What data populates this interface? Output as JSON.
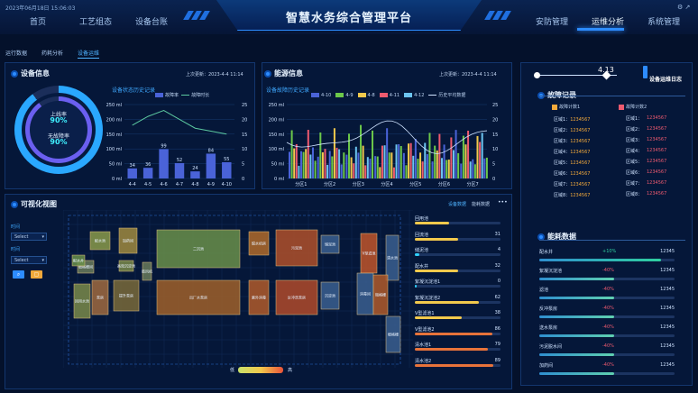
{
  "header": {
    "datetime": "2023年06月18日 15:06:03",
    "title": "智慧水务综合管理平台",
    "nav_left": [
      "首页",
      "工艺组态",
      "设备台账"
    ],
    "nav_right": [
      "安防管理",
      "运维分析",
      "系统管理"
    ],
    "active_nav": "运维分析"
  },
  "subtabs": [
    "运行数据",
    "药耗分析",
    "设备运维"
  ],
  "active_subtab": "设备运维",
  "device_panel": {
    "title": "设备信息",
    "updated": "上次更新：2023-4-4 11:14",
    "online_label": "上线率",
    "online_value": "90%",
    "fault_label": "无故障率",
    "fault_value": "90%"
  },
  "energy_panel": {
    "title": "能源信息",
    "updated": "上次更新：2023-4-4 11:14"
  },
  "device_chart": {
    "section_label": "设备状态历史记录",
    "legend": [
      "故障率",
      "故障时长"
    ]
  },
  "energy_chart": {
    "section_label": "设备故障历史记录",
    "legend": [
      "4-10",
      "4-9",
      "4-8",
      "4-11",
      "4-12",
      "历史平均数据"
    ]
  },
  "chart_data": [
    {
      "type": "bar",
      "categories": [
        "4-4",
        "4-5",
        "4-6",
        "4-7",
        "4-8",
        "4-9",
        "4-10"
      ],
      "series": [
        {
          "name": "故障率",
          "values": [
            34,
            36,
            99,
            52,
            24,
            84,
            55
          ]
        },
        {
          "name": "故障时长",
          "values": [
            18,
            21,
            23,
            20,
            17,
            16,
            15
          ]
        }
      ],
      "yleft": {
        "ticks": [
          "0 ml",
          "50 ml",
          "100 ml",
          "150 ml",
          "200 ml",
          "250 ml"
        ],
        "range": [
          0,
          250
        ]
      },
      "yright": {
        "ticks": [
          "0",
          "5",
          "10",
          "15",
          "20",
          "25"
        ],
        "range": [
          0,
          25
        ]
      },
      "bar_labels": [
        "34",
        "36",
        "99",
        "52",
        "24",
        "84",
        "55"
      ]
    },
    {
      "type": "bar",
      "categories": [
        "分区1",
        "分区2",
        "分区3",
        "分区4",
        "分区5",
        "分区6",
        "分区7"
      ],
      "series": [
        {
          "name": "4-10",
          "color": "#4a63d8"
        },
        {
          "name": "4-9",
          "color": "#6cc84a"
        },
        {
          "name": "4-8",
          "color": "#f2c94c"
        },
        {
          "name": "4-11",
          "color": "#ee5a6f"
        },
        {
          "name": "4-12",
          "color": "#6cc4f0"
        },
        {
          "name": "历史平均数据",
          "color": "#cfe3ff"
        }
      ],
      "yleft": {
        "ticks": [
          "0 ml",
          "50 ml",
          "100 ml",
          "150 ml",
          "200 ml",
          "250 ml"
        ],
        "range": [
          0,
          250
        ]
      },
      "yright": {
        "ticks": [
          "0",
          "5",
          "10",
          "15",
          "20",
          "25"
        ],
        "range": [
          0,
          25
        ]
      }
    }
  ],
  "viz_panel": {
    "title": "可视化视图",
    "tab_device": "设备数据",
    "tab_energy": "能耗数据",
    "more": "•••",
    "form_label_1": "时间",
    "select_1": "Select",
    "form_label_2": "时间",
    "select_2": "Select",
    "legend_low": "低",
    "legend_high": "高"
  },
  "viz_blocks": [
    "配水池",
    "加药间",
    "鼓风机",
    "二沉池",
    "脱水机房",
    "污泥池",
    "储泥池",
    "V型滤池",
    "清水池",
    "回用水池",
    "泵房",
    "提升泵房",
    "出厂水泵房",
    "紫外消毒",
    "反冲洗泵房",
    "消毒间",
    "粗格栅",
    "细格栅",
    "细格栅间",
    "沉淀池",
    "高效沉淀池",
    "配水井"
  ],
  "viz_metrics": [
    {
      "label": "回用池",
      "value": "",
      "pct": 0.4,
      "color": "#f2c94c"
    },
    {
      "label": "回流池",
      "value": "31",
      "pct": 0.5,
      "color": "#f2c94c"
    },
    {
      "label": "储泥池",
      "value": "4",
      "pct": 0.05,
      "color": "#2fd0ff"
    },
    {
      "label": "配水井",
      "value": "32",
      "pct": 0.5,
      "color": "#f2c94c"
    },
    {
      "label": "絮凝沉淀池1",
      "value": "0",
      "pct": 0.02,
      "color": "#2fd0ff"
    },
    {
      "label": "絮凝沉淀池2",
      "value": "62",
      "pct": 0.75,
      "color": "#f2c94c"
    },
    {
      "label": "V型滤池1",
      "value": "38",
      "pct": 0.55,
      "color": "#f2c94c"
    },
    {
      "label": "V型滤池2",
      "value": "86",
      "pct": 0.9,
      "color": "#e8733a"
    },
    {
      "label": "清水池1",
      "value": "79",
      "pct": 0.85,
      "color": "#e8733a"
    },
    {
      "label": "清水池2",
      "value": "89",
      "pct": 0.92,
      "color": "#e8733a"
    }
  ],
  "right_panel": {
    "date_value": "4.13",
    "ops_title": "设备运维日志",
    "fault_title": "故障记录",
    "fault_legend": [
      "故障计数1",
      "故障计数2"
    ],
    "energy_title": "能耗数据"
  },
  "fault_records": [
    {
      "a_label": "区域1：",
      "a_val": "1234567",
      "b_label": "区域1：",
      "b_val": "1234567"
    },
    {
      "a_label": "区域2：",
      "a_val": "1234567",
      "b_label": "区域2：",
      "b_val": "1234567"
    },
    {
      "a_label": "区域3：",
      "a_val": "1234567",
      "b_label": "区域3：",
      "b_val": "1234567"
    },
    {
      "a_label": "区域4：",
      "a_val": "1234567",
      "b_label": "区域4：",
      "b_val": "1234567"
    },
    {
      "a_label": "区域5：",
      "a_val": "1234567",
      "b_label": "区域5：",
      "b_val": "1234567"
    },
    {
      "a_label": "区域6：",
      "a_val": "1234567",
      "b_label": "区域6：",
      "b_val": "1234567"
    },
    {
      "a_label": "区域7：",
      "a_val": "1234567",
      "b_label": "区域7：",
      "b_val": "1234567"
    },
    {
      "a_label": "区域8：",
      "a_val": "1234567",
      "b_label": "区域8：",
      "b_val": "1234567"
    }
  ],
  "energy_records": [
    {
      "name": "配水井",
      "change": "+10%",
      "value": "12345",
      "pct": 0.9,
      "up": true
    },
    {
      "name": "絮凝沉淀池",
      "change": "-40%",
      "value": "12345",
      "pct": 0.55,
      "up": false
    },
    {
      "name": "滤池",
      "change": "-40%",
      "value": "12345",
      "pct": 0.55,
      "up": false
    },
    {
      "name": "反冲泵房",
      "change": "-40%",
      "value": "12345",
      "pct": 0.55,
      "up": false
    },
    {
      "name": "送水泵房",
      "change": "-40%",
      "value": "12345",
      "pct": 0.55,
      "up": false
    },
    {
      "name": "污泥脱水间",
      "change": "-40%",
      "value": "12345",
      "pct": 0.55,
      "up": false
    },
    {
      "name": "加药间",
      "change": "-40%",
      "value": "12345",
      "pct": 0.55,
      "up": false
    }
  ],
  "colors": {
    "accent": "#2d8cff",
    "bar_primary": "#4a63d8",
    "line_primary": "#5cc8a0",
    "positive": "#2fd0a0",
    "negative": "#ee5a6f",
    "fault_orange": "#f2a93b",
    "fault_red": "#ee5a6f"
  }
}
